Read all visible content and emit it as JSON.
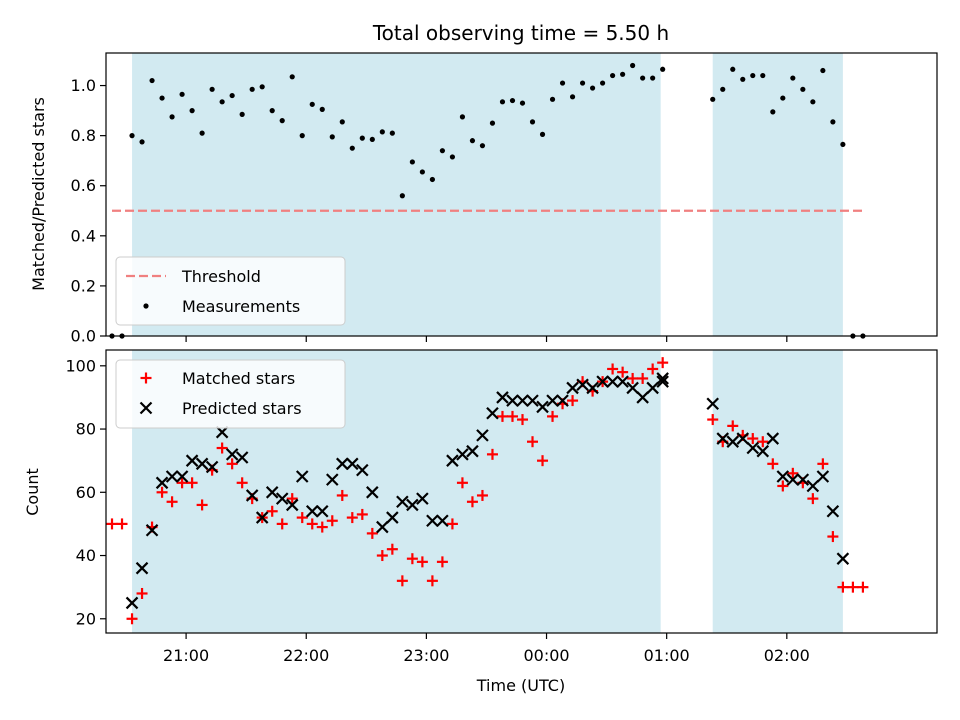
{
  "chart_data": [
    {
      "type": "scatter",
      "title": "Total observing time = 5.50 h",
      "xlabel": "",
      "ylabel": "Matched/Predicted stars",
      "ylim": [
        0.0,
        1.13
      ],
      "yticks": [
        "0.0",
        "0.2",
        "0.4",
        "0.6",
        "0.8",
        "1.0"
      ],
      "xticks": [
        "21:00",
        "22:00",
        "23:00",
        "00:00",
        "01:00",
        "02:00"
      ],
      "grid": false,
      "legend_position": "lower-left",
      "shaded_intervals_color": "#add8e6",
      "shaded_intervals": [
        [
          "20:33",
          "00:57"
        ],
        [
          "01:23",
          "02:28"
        ]
      ],
      "threshold": {
        "name": "Threshold",
        "value": 0.5,
        "color": "#f08080",
        "x_range": [
          "20:23",
          "02:38"
        ]
      },
      "series": [
        {
          "name": "Measurements",
          "color": "#000000",
          "points": [
            [
              "20:23",
              0.0
            ],
            [
              "20:28",
              0.0
            ],
            [
              "20:33",
              0.8
            ],
            [
              "20:38",
              0.775
            ],
            [
              "20:43",
              1.02
            ],
            [
              "20:48",
              0.95
            ],
            [
              "20:53",
              0.875
            ],
            [
              "20:58",
              0.965
            ],
            [
              "21:03",
              0.9
            ],
            [
              "21:08",
              0.81
            ],
            [
              "21:13",
              0.985
            ],
            [
              "21:18",
              0.935
            ],
            [
              "21:23",
              0.96
            ],
            [
              "21:28",
              0.885
            ],
            [
              "21:33",
              0.985
            ],
            [
              "21:38",
              0.995
            ],
            [
              "21:43",
              0.9
            ],
            [
              "21:48",
              0.86
            ],
            [
              "21:53",
              1.035
            ],
            [
              "21:58",
              0.8
            ],
            [
              "22:03",
              0.925
            ],
            [
              "22:08",
              0.905
            ],
            [
              "22:13",
              0.795
            ],
            [
              "22:18",
              0.855
            ],
            [
              "22:23",
              0.75
            ],
            [
              "22:28",
              0.79
            ],
            [
              "22:33",
              0.785
            ],
            [
              "22:38",
              0.815
            ],
            [
              "22:43",
              0.81
            ],
            [
              "22:48",
              0.56
            ],
            [
              "22:53",
              0.695
            ],
            [
              "22:58",
              0.655
            ],
            [
              "23:03",
              0.625
            ],
            [
              "23:08",
              0.74
            ],
            [
              "23:13",
              0.715
            ],
            [
              "23:18",
              0.875
            ],
            [
              "23:23",
              0.78
            ],
            [
              "23:28",
              0.76
            ],
            [
              "23:33",
              0.85
            ],
            [
              "23:38",
              0.935
            ],
            [
              "23:43",
              0.94
            ],
            [
              "23:48",
              0.93
            ],
            [
              "23:53",
              0.855
            ],
            [
              "23:58",
              0.805
            ],
            [
              "00:03",
              0.945
            ],
            [
              "00:08",
              1.01
            ],
            [
              "00:13",
              0.955
            ],
            [
              "00:18",
              1.01
            ],
            [
              "00:23",
              0.99
            ],
            [
              "00:28",
              1.01
            ],
            [
              "00:33",
              1.04
            ],
            [
              "00:38",
              1.045
            ],
            [
              "00:43",
              1.08
            ],
            [
              "00:48",
              1.03
            ],
            [
              "00:53",
              1.03
            ],
            [
              "00:58",
              1.065
            ],
            [
              "01:23",
              0.945
            ],
            [
              "01:28",
              0.985
            ],
            [
              "01:33",
              1.065
            ],
            [
              "01:38",
              1.025
            ],
            [
              "01:43",
              1.04
            ],
            [
              "01:48",
              1.04
            ],
            [
              "01:53",
              0.895
            ],
            [
              "01:58",
              0.95
            ],
            [
              "02:03",
              1.03
            ],
            [
              "02:08",
              0.985
            ],
            [
              "02:13",
              0.935
            ],
            [
              "02:18",
              1.06
            ],
            [
              "02:23",
              0.855
            ],
            [
              "02:28",
              0.765
            ],
            [
              "02:33",
              0.0
            ],
            [
              "02:38",
              0.0
            ]
          ]
        }
      ]
    },
    {
      "type": "scatter",
      "title": "",
      "xlabel": "Time (UTC)",
      "ylabel": "Count",
      "ylim": [
        15.5,
        105
      ],
      "yticks": [
        "20",
        "40",
        "60",
        "80",
        "100"
      ],
      "xticks": [
        "21:00",
        "22:00",
        "23:00",
        "00:00",
        "01:00",
        "02:00"
      ],
      "grid": false,
      "legend_position": "upper-left",
      "shaded_intervals_color": "#add8e6",
      "shaded_intervals": [
        [
          "20:33",
          "00:57"
        ],
        [
          "01:23",
          "02:28"
        ]
      ],
      "series": [
        {
          "name": "Matched stars",
          "marker": "plus",
          "color": "#ff0000",
          "points": [
            [
              "20:23",
              50
            ],
            [
              "20:28",
              50
            ],
            [
              "20:33",
              20
            ],
            [
              "20:38",
              28
            ],
            [
              "20:43",
              49
            ],
            [
              "20:48",
              60
            ],
            [
              "20:53",
              57
            ],
            [
              "20:58",
              63
            ],
            [
              "21:03",
              63
            ],
            [
              "21:08",
              56
            ],
            [
              "21:13",
              67
            ],
            [
              "21:18",
              74
            ],
            [
              "21:23",
              69
            ],
            [
              "21:28",
              63
            ],
            [
              "21:33",
              58
            ],
            [
              "21:38",
              52
            ],
            [
              "21:43",
              54
            ],
            [
              "21:48",
              50
            ],
            [
              "21:53",
              58
            ],
            [
              "21:58",
              52
            ],
            [
              "22:03",
              50
            ],
            [
              "22:08",
              49
            ],
            [
              "22:13",
              51
            ],
            [
              "22:18",
              59
            ],
            [
              "22:23",
              52
            ],
            [
              "22:28",
              53
            ],
            [
              "22:33",
              47
            ],
            [
              "22:38",
              40
            ],
            [
              "22:43",
              42
            ],
            [
              "22:48",
              32
            ],
            [
              "22:53",
              39
            ],
            [
              "22:58",
              38
            ],
            [
              "23:03",
              32
            ],
            [
              "23:08",
              38
            ],
            [
              "23:13",
              50
            ],
            [
              "23:18",
              63
            ],
            [
              "23:23",
              57
            ],
            [
              "23:28",
              59
            ],
            [
              "23:33",
              72
            ],
            [
              "23:38",
              84
            ],
            [
              "23:43",
              84
            ],
            [
              "23:48",
              83
            ],
            [
              "23:53",
              76
            ],
            [
              "23:58",
              70
            ],
            [
              "00:03",
              84
            ],
            [
              "00:08",
              88
            ],
            [
              "00:13",
              89
            ],
            [
              "00:18",
              95
            ],
            [
              "00:23",
              92
            ],
            [
              "00:28",
              95
            ],
            [
              "00:33",
              99
            ],
            [
              "00:38",
              98
            ],
            [
              "00:43",
              96
            ],
            [
              "00:48",
              96
            ],
            [
              "00:53",
              99
            ],
            [
              "00:58",
              101
            ],
            [
              "01:23",
              83
            ],
            [
              "01:28",
              76
            ],
            [
              "01:33",
              81
            ],
            [
              "01:38",
              78
            ],
            [
              "01:43",
              77
            ],
            [
              "01:48",
              76
            ],
            [
              "01:53",
              69
            ],
            [
              "01:58",
              62
            ],
            [
              "02:03",
              66
            ],
            [
              "02:08",
              63
            ],
            [
              "02:13",
              58
            ],
            [
              "02:18",
              69
            ],
            [
              "02:23",
              46
            ],
            [
              "02:28",
              30
            ],
            [
              "02:33",
              30
            ],
            [
              "02:38",
              30
            ]
          ]
        },
        {
          "name": "Predicted stars",
          "marker": "x",
          "color": "#000000",
          "points": [
            [
              "20:33",
              25
            ],
            [
              "20:38",
              36
            ],
            [
              "20:43",
              48
            ],
            [
              "20:48",
              63
            ],
            [
              "20:53",
              65
            ],
            [
              "20:58",
              65
            ],
            [
              "21:03",
              70
            ],
            [
              "21:08",
              69
            ],
            [
              "21:13",
              68
            ],
            [
              "21:18",
              79
            ],
            [
              "21:23",
              72
            ],
            [
              "21:28",
              71
            ],
            [
              "21:33",
              59
            ],
            [
              "21:38",
              52
            ],
            [
              "21:43",
              60
            ],
            [
              "21:48",
              58
            ],
            [
              "21:53",
              56
            ],
            [
              "21:58",
              65
            ],
            [
              "22:03",
              54
            ],
            [
              "22:08",
              54
            ],
            [
              "22:13",
              64
            ],
            [
              "22:18",
              69
            ],
            [
              "22:23",
              69
            ],
            [
              "22:28",
              67
            ],
            [
              "22:33",
              60
            ],
            [
              "22:38",
              49
            ],
            [
              "22:43",
              52
            ],
            [
              "22:48",
              57
            ],
            [
              "22:53",
              56
            ],
            [
              "22:58",
              58
            ],
            [
              "23:03",
              51
            ],
            [
              "23:08",
              51
            ],
            [
              "23:13",
              70
            ],
            [
              "23:18",
              72
            ],
            [
              "23:23",
              73
            ],
            [
              "23:28",
              78
            ],
            [
              "23:33",
              85
            ],
            [
              "23:38",
              90
            ],
            [
              "23:43",
              89
            ],
            [
              "23:48",
              89
            ],
            [
              "23:53",
              89
            ],
            [
              "23:58",
              87
            ],
            [
              "00:03",
              89
            ],
            [
              "00:08",
              89
            ],
            [
              "00:13",
              93
            ],
            [
              "00:18",
              94
            ],
            [
              "00:23",
              93
            ],
            [
              "00:28",
              95
            ],
            [
              "00:33",
              95
            ],
            [
              "00:38",
              95
            ],
            [
              "00:43",
              93
            ],
            [
              "00:48",
              90
            ],
            [
              "00:53",
              93
            ],
            [
              "00:58",
              96
            ],
            [
              "00:58",
              95
            ],
            [
              "01:23",
              88
            ],
            [
              "01:28",
              77
            ],
            [
              "01:33",
              76
            ],
            [
              "01:38",
              77
            ],
            [
              "01:43",
              74
            ],
            [
              "01:48",
              73
            ],
            [
              "01:53",
              77
            ],
            [
              "01:58",
              65
            ],
            [
              "02:03",
              64
            ],
            [
              "02:08",
              64
            ],
            [
              "02:13",
              62
            ],
            [
              "02:18",
              65
            ],
            [
              "02:23",
              54
            ],
            [
              "02:28",
              39
            ]
          ]
        }
      ]
    }
  ]
}
